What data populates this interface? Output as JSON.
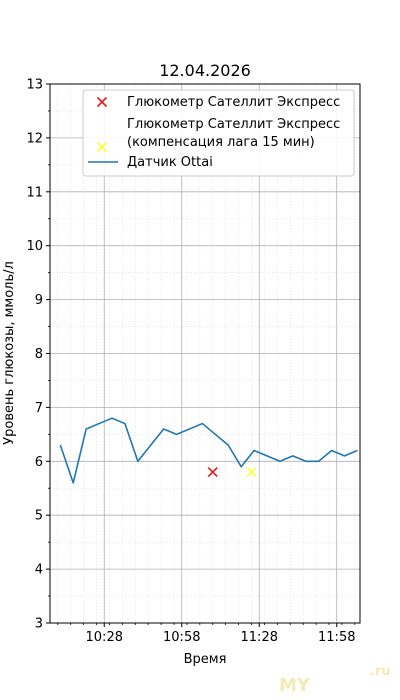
{
  "chart_data": {
    "type": "line",
    "title": "12.04.2026",
    "xlabel": "Время",
    "ylabel": "Уровень глюкозы, ммоль/л",
    "ylim": [
      3,
      13
    ],
    "xlim": [
      "10:07",
      "12:07"
    ],
    "yticks": [
      3,
      4,
      5,
      6,
      7,
      8,
      9,
      10,
      11,
      12,
      13
    ],
    "xticks": [
      "10:28",
      "10:58",
      "11:28",
      "11:58"
    ],
    "grid": true,
    "legend_position": "top-right",
    "series": [
      {
        "name": "Глюкометр Сателлит Экспресс",
        "kind": "scatter",
        "marker": "x",
        "color": "#e31a1c",
        "points": [
          {
            "x": "11:10",
            "y": 5.8
          }
        ]
      },
      {
        "name": "Глюкометр Сателлит Экспресс\n(компенсация лага 15 мин)",
        "kind": "scatter",
        "marker": "x",
        "color": "#ffff33",
        "points": [
          {
            "x": "11:25",
            "y": 5.8
          }
        ]
      },
      {
        "name": "Датчик Ottai",
        "kind": "line",
        "color": "#1f77b4",
        "points": [
          {
            "x": "10:11",
            "y": 6.3
          },
          {
            "x": "10:16",
            "y": 5.6
          },
          {
            "x": "10:21",
            "y": 6.6
          },
          {
            "x": "10:26",
            "y": 6.7
          },
          {
            "x": "10:31",
            "y": 6.8
          },
          {
            "x": "10:36",
            "y": 6.7
          },
          {
            "x": "10:41",
            "y": 6.0
          },
          {
            "x": "10:51",
            "y": 6.6
          },
          {
            "x": "10:56",
            "y": 6.5
          },
          {
            "x": "11:06",
            "y": 6.7
          },
          {
            "x": "11:16",
            "y": 6.3
          },
          {
            "x": "11:21",
            "y": 5.9
          },
          {
            "x": "11:26",
            "y": 6.2
          },
          {
            "x": "11:31",
            "y": 6.1
          },
          {
            "x": "11:36",
            "y": 6.0
          },
          {
            "x": "11:41",
            "y": 6.1
          },
          {
            "x": "11:46",
            "y": 6.0
          },
          {
            "x": "11:51",
            "y": 6.0
          },
          {
            "x": "11:56",
            "y": 6.2
          },
          {
            "x": "12:01",
            "y": 6.1
          },
          {
            "x": "12:06",
            "y": 6.2
          }
        ]
      }
    ]
  },
  "watermark": {
    "text": "MY",
    "suffix": ".ru"
  }
}
